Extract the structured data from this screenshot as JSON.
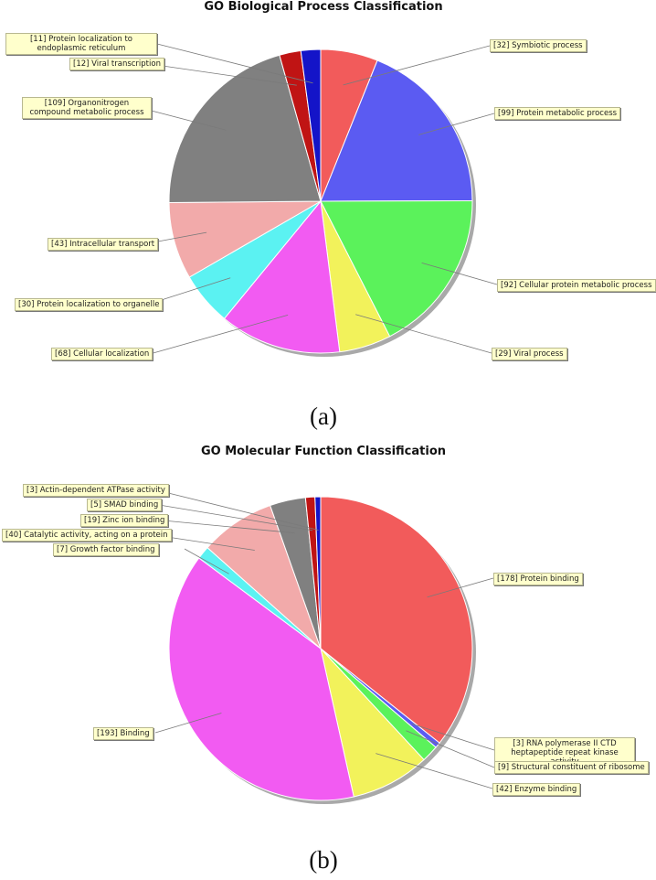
{
  "chart_data": [
    {
      "type": "pie",
      "title": "GO Biological Process Classification",
      "panel": "(a)",
      "slices": [
        {
          "label": "[32] Symbiotic process",
          "value": 32,
          "color": "#f25b5b"
        },
        {
          "label": "[99] Protein metabolic process",
          "value": 99,
          "color": "#5b5bf2"
        },
        {
          "label": "[92] Cellular protein metabolic process",
          "value": 92,
          "color": "#5bf25b"
        },
        {
          "label": "[29] Viral process",
          "value": 29,
          "color": "#f2f25b"
        },
        {
          "label": "[68] Cellular localization",
          "value": 68,
          "color": "#f25bf2"
        },
        {
          "label": "[30] Protein localization to organelle",
          "value": 30,
          "color": "#5bf2f2"
        },
        {
          "label": "[43] Intracellular transport",
          "value": 43,
          "color": "#f2aaaa"
        },
        {
          "label": "[109] Organonitrogen compound metabolic process",
          "value": 109,
          "color": "#808080"
        },
        {
          "label": "[12] Viral transcription",
          "value": 12,
          "color": "#c01414"
        },
        {
          "label": "[11] Protein localization to endoplasmic reticulum",
          "value": 11,
          "color": "#1414c8"
        }
      ]
    },
    {
      "type": "pie",
      "title": "GO Molecular Function Classification",
      "panel": "(b)",
      "slices": [
        {
          "label": "[178] Protein binding",
          "value": 178,
          "color": "#f25b5b"
        },
        {
          "label": "[3] RNA polymerase II CTD heptapeptide repeat kinase activity",
          "value": 3,
          "color": "#5b5bf2"
        },
        {
          "label": "[9] Structural constituent of ribosome",
          "value": 9,
          "color": "#5bf25b"
        },
        {
          "label": "[42] Enzyme binding",
          "value": 42,
          "color": "#f2f25b"
        },
        {
          "label": "[193] Binding",
          "value": 193,
          "color": "#f25bf2"
        },
        {
          "label": "[7] Growth factor binding",
          "value": 7,
          "color": "#5bf2f2"
        },
        {
          "label": "[40] Catalytic activity, acting on a protein",
          "value": 40,
          "color": "#f2aaaa"
        },
        {
          "label": "[19] Zinc ion binding",
          "value": 19,
          "color": "#808080"
        },
        {
          "label": "[5] SMAD binding",
          "value": 5,
          "color": "#c01414"
        },
        {
          "label": "[3] Actin-dependent ATPase activity",
          "value": 3,
          "color": "#1414c8"
        }
      ]
    }
  ]
}
